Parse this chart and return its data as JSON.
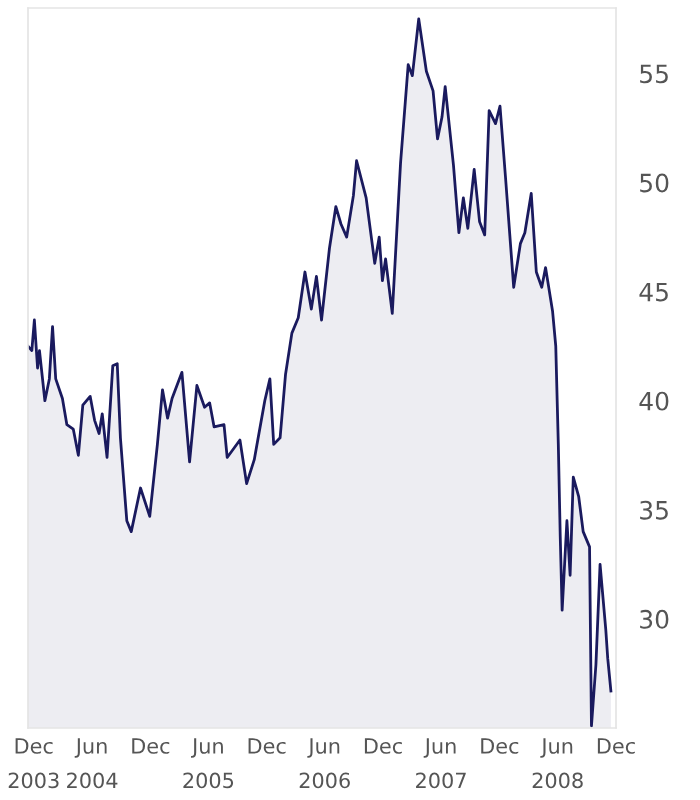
{
  "chart_data": {
    "type": "area",
    "x": [
      "2003-11-13",
      "2003-11-25",
      "2003-12-03",
      "2003-12-13",
      "2003-12-19",
      "2004-01-05",
      "2004-01-19",
      "2004-01-29",
      "2004-02-08",
      "2004-02-29",
      "2004-03-14",
      "2004-04-03",
      "2004-04-19",
      "2004-05-03",
      "2004-05-26",
      "2004-06-09",
      "2004-06-23",
      "2004-07-03",
      "2004-07-18",
      "2004-08-05",
      "2004-08-19",
      "2004-08-29",
      "2004-09-18",
      "2004-10-02",
      "2004-10-31",
      "2004-11-29",
      "2004-12-23",
      "2005-01-08",
      "2005-01-24",
      "2005-02-07",
      "2005-03-10",
      "2005-04-03",
      "2005-04-26",
      "2005-05-20",
      "2005-06-05",
      "2005-06-19",
      "2005-07-20",
      "2005-07-30",
      "2005-08-19",
      "2005-09-08",
      "2005-09-29",
      "2005-10-23",
      "2005-11-25",
      "2005-12-11",
      "2005-12-23",
      "2006-01-12",
      "2006-01-29",
      "2006-02-18",
      "2006-03-10",
      "2006-03-31",
      "2006-04-20",
      "2006-05-06",
      "2006-05-22",
      "2006-06-16",
      "2006-07-06",
      "2006-07-22",
      "2006-08-09",
      "2006-08-30",
      "2006-09-09",
      "2006-10-09",
      "2006-11-05",
      "2006-11-19",
      "2006-11-29",
      "2006-12-09",
      "2006-12-30",
      "2007-01-25",
      "2007-02-18",
      "2007-03-03",
      "2007-03-23",
      "2007-04-16",
      "2007-05-07",
      "2007-05-21",
      "2007-06-04",
      "2007-06-14",
      "2007-07-10",
      "2007-07-27",
      "2007-08-10",
      "2007-08-24",
      "2007-09-13",
      "2007-09-30",
      "2007-10-16",
      "2007-10-30",
      "2007-11-19",
      "2007-12-03",
      "2007-12-20",
      "2008-01-15",
      "2008-02-05",
      "2008-02-19",
      "2008-03-10",
      "2008-03-26",
      "2008-04-12",
      "2008-04-24",
      "2008-05-16",
      "2008-05-26",
      "2008-06-03",
      "2008-06-09",
      "2008-06-15",
      "2008-06-30",
      "2008-07-10",
      "2008-07-20",
      "2008-08-06",
      "2008-08-20",
      "2008-09-09",
      "2008-09-15",
      "2008-09-29",
      "2008-10-12",
      "2008-10-30",
      "2008-11-05",
      "2008-11-15"
    ],
    "series": [
      {
        "color": "#1a1a5e",
        "values": [
          42.5,
          42.3,
          43.7,
          41.5,
          42.3,
          40.0,
          41.0,
          43.4,
          41.0,
          40.1,
          38.9,
          38.7,
          37.5,
          39.8,
          40.2,
          39.1,
          38.5,
          39.4,
          37.4,
          41.6,
          41.7,
          38.3,
          34.5,
          34.0,
          36.0,
          34.7,
          38.0,
          40.5,
          39.2,
          40.1,
          41.3,
          37.2,
          40.7,
          39.7,
          39.9,
          38.8,
          38.9,
          37.4,
          37.8,
          38.2,
          36.2,
          37.3,
          40.0,
          41.0,
          38.0,
          38.3,
          41.2,
          43.1,
          43.8,
          45.9,
          44.2,
          45.7,
          43.7,
          47.0,
          48.9,
          48.1,
          47.5,
          49.4,
          51.0,
          49.3,
          46.3,
          47.5,
          45.5,
          46.5,
          44.0,
          50.9,
          55.4,
          54.9,
          57.5,
          55.1,
          54.2,
          52.0,
          53.0,
          54.4,
          50.8,
          47.7,
          49.3,
          47.9,
          50.6,
          48.2,
          47.6,
          53.3,
          52.7,
          53.5,
          50.3,
          45.2,
          47.2,
          47.7,
          49.5,
          45.9,
          45.2,
          46.1,
          44.1,
          42.5,
          38.0,
          33.8,
          30.4,
          34.5,
          32.0,
          36.5,
          35.6,
          34.0,
          33.3,
          25.1,
          27.9,
          32.5,
          29.5,
          28.2,
          26.7
        ]
      }
    ],
    "xlim": [
      "2003-11-13",
      "2008-12-01"
    ],
    "xticks": [
      {
        "value": "2003-12-01",
        "label": "Dec\n2003"
      },
      {
        "value": "2004-06-01",
        "label": "Jun\n2004"
      },
      {
        "value": "2004-12-01",
        "label": "Dec"
      },
      {
        "value": "2005-06-01",
        "label": "Jun\n2005"
      },
      {
        "value": "2005-12-01",
        "label": "Dec"
      },
      {
        "value": "2006-06-01",
        "label": "Jun\n2006"
      },
      {
        "value": "2006-12-01",
        "label": "Dec"
      },
      {
        "value": "2007-06-01",
        "label": "Jun\n2007"
      },
      {
        "value": "2007-12-01",
        "label": "Dec"
      },
      {
        "value": "2008-06-01",
        "label": "Jun\n2008"
      },
      {
        "value": "2008-12-01",
        "label": "Dec"
      }
    ],
    "ylim": [
      25,
      58
    ],
    "yticks": [
      30,
      35,
      40,
      45,
      50,
      55
    ],
    "grid": false,
    "legend": false
  }
}
